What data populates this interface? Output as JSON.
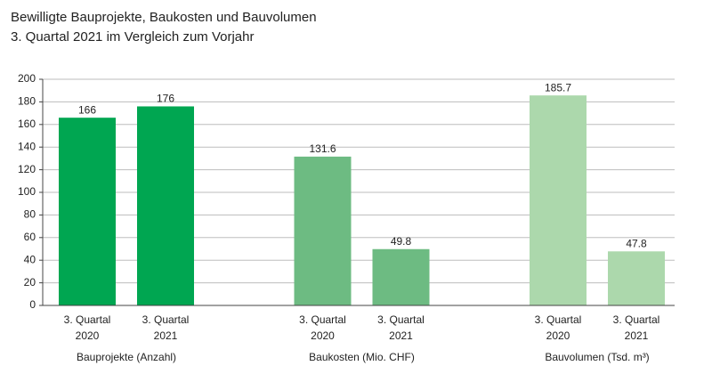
{
  "chart_data": {
    "type": "bar",
    "title": "Bewilligte Bauprojekte, Baukosten und Bauvolumen",
    "subtitle": "3. Quartal 2021 im Vergleich zum Vorjahr",
    "ylim": [
      0,
      200
    ],
    "yticks": [
      0,
      20,
      40,
      60,
      80,
      100,
      120,
      140,
      160,
      180,
      200
    ],
    "grid": true,
    "groups": [
      {
        "name": "Bauprojekte (Anzahl)",
        "color": "#00a651",
        "categories": [
          "3. Quartal 2020",
          "3. Quartal 2021"
        ],
        "values": [
          166,
          176
        ]
      },
      {
        "name": "Baukosten (Mio. CHF)",
        "color": "#6dbb82",
        "categories": [
          "3. Quartal 2020",
          "3. Quartal 2021"
        ],
        "values": [
          131.6,
          49.8
        ]
      },
      {
        "name": "Bauvolumen (Tsd. m³)",
        "color": "#acd8ac",
        "categories": [
          "3. Quartal 2020",
          "3. Quartal 2021"
        ],
        "values": [
          185.7,
          47.8
        ]
      }
    ]
  }
}
